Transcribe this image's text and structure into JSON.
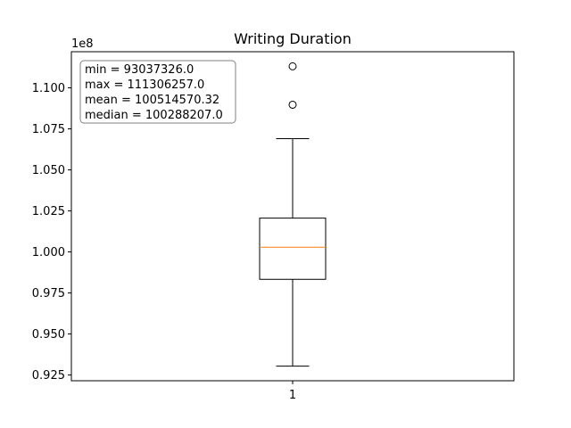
{
  "chart_data": {
    "type": "box",
    "title": "Writing Duration",
    "xlabel": "",
    "ylabel": "",
    "y_scale_label": "1e8",
    "y_scale_factor": 100000000,
    "ylim": [
      0.9215,
      1.122
    ],
    "yticks": [
      0.925,
      0.95,
      0.975,
      1.0,
      1.025,
      1.05,
      1.075,
      1.1
    ],
    "ytick_labels": [
      "0.925",
      "0.950",
      "0.975",
      "1.000",
      "1.025",
      "1.050",
      "1.075",
      "1.100"
    ],
    "categories": [
      "1"
    ],
    "boxes": [
      {
        "category": "1",
        "whisker_low": 0.9304,
        "q1": 0.9833,
        "median": 1.0029,
        "q3": 1.0206,
        "whisker_high": 1.069,
        "outliers": [
          1.0897,
          1.1131
        ]
      }
    ],
    "stats_box": [
      "min = 93037326.0",
      "max = 111306257.0",
      "mean = 100514570.32",
      "median = 100288207.0"
    ],
    "colors": {
      "box": "#000000",
      "median": "#ff7f0e",
      "outlier": "#000000"
    },
    "grid": false,
    "stats_box_position": "top-left"
  }
}
